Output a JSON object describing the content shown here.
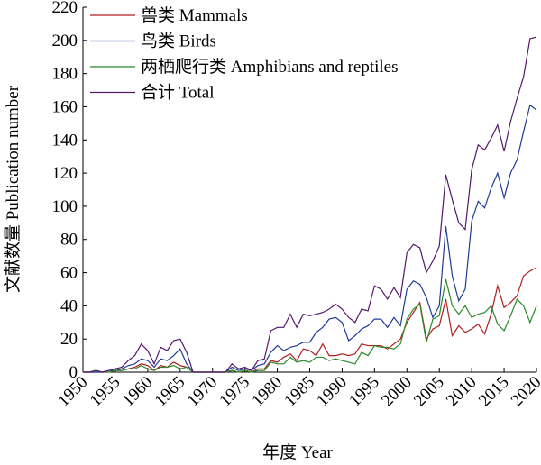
{
  "chart_data": {
    "type": "line",
    "x_label": "年度 Year",
    "y_label": "文献数量 Publication number",
    "x": [
      1950,
      1951,
      1952,
      1953,
      1954,
      1955,
      1956,
      1957,
      1958,
      1959,
      1960,
      1961,
      1962,
      1963,
      1964,
      1965,
      1966,
      1967,
      1968,
      1969,
      1970,
      1971,
      1972,
      1973,
      1974,
      1975,
      1976,
      1977,
      1978,
      1979,
      1980,
      1981,
      1982,
      1983,
      1984,
      1985,
      1986,
      1987,
      1988,
      1989,
      1990,
      1991,
      1992,
      1993,
      1994,
      1995,
      1996,
      1997,
      1998,
      1999,
      2000,
      2001,
      2002,
      2003,
      2004,
      2005,
      2006,
      2007,
      2008,
      2009,
      2010,
      2011,
      2012,
      2013,
      2014,
      2015,
      2016,
      2017,
      2018,
      2019,
      2020
    ],
    "series": [
      {
        "name": "兽类 Mammals",
        "color": "#b01e1e",
        "values": [
          0,
          0,
          0,
          0,
          0,
          1,
          1,
          2,
          3,
          5,
          4,
          1,
          4,
          3,
          6,
          4,
          3,
          0,
          0,
          0,
          0,
          0,
          0,
          1,
          0,
          1,
          0,
          2,
          2,
          7,
          6,
          9,
          11,
          7,
          14,
          13,
          10,
          17,
          10,
          10,
          11,
          10,
          11,
          17,
          16,
          16,
          16,
          14,
          17,
          20,
          30,
          36,
          42,
          20,
          26,
          28,
          44,
          22,
          28,
          24,
          26,
          29,
          23,
          35,
          52,
          39,
          42,
          46,
          58,
          61,
          63
        ]
      },
      {
        "name": "鸟类 Birds",
        "color": "#1f3c96",
        "values": [
          0,
          0,
          0,
          0,
          1,
          1,
          2,
          4,
          5,
          8,
          7,
          3,
          8,
          7,
          10,
          14,
          5,
          0,
          0,
          0,
          0,
          0,
          0,
          3,
          1,
          2,
          1,
          4,
          5,
          12,
          16,
          13,
          15,
          16,
          18,
          18,
          24,
          27,
          32,
          33,
          30,
          19,
          22,
          26,
          28,
          32,
          32,
          27,
          33,
          28,
          50,
          55,
          53,
          45,
          33,
          40,
          88,
          58,
          43,
          50,
          91,
          103,
          99,
          111,
          120,
          105,
          120,
          128,
          145,
          161,
          158
        ]
      },
      {
        "name": "两栖爬行类 Amphibians and reptiles",
        "color": "#2a8a2a",
        "values": [
          0,
          0,
          1,
          0,
          0,
          1,
          1,
          2,
          2,
          4,
          2,
          1,
          3,
          3,
          4,
          2,
          3,
          0,
          0,
          0,
          0,
          0,
          0,
          1,
          0,
          1,
          0,
          1,
          1,
          6,
          5,
          5,
          9,
          6,
          7,
          6,
          9,
          9,
          7,
          8,
          7,
          6,
          5,
          12,
          10,
          16,
          15,
          15,
          14,
          17,
          32,
          38,
          41,
          18,
          32,
          34,
          56,
          40,
          35,
          40,
          33,
          35,
          36,
          40,
          29,
          25,
          34,
          44,
          40,
          30,
          40
        ]
      },
      {
        "name": "合计 Total",
        "color": "#55186b",
        "values": [
          0,
          0,
          1,
          0,
          1,
          2,
          3,
          7,
          10,
          17,
          13,
          5,
          15,
          13,
          19,
          20,
          12,
          0,
          0,
          0,
          0,
          0,
          0,
          5,
          2,
          3,
          1,
          7,
          8,
          25,
          27,
          27,
          35,
          27,
          35,
          34,
          35,
          36,
          38,
          41,
          38,
          33,
          30,
          38,
          37,
          52,
          50,
          44,
          51,
          45,
          72,
          77,
          75,
          60,
          67,
          76,
          119,
          104,
          90,
          86,
          122,
          137,
          134,
          141,
          149,
          133,
          151,
          165,
          178,
          201,
          202
        ]
      }
    ],
    "xlim": [
      1950,
      2020
    ],
    "xticks": [
      1950,
      1955,
      1960,
      1965,
      1970,
      1975,
      1980,
      1985,
      1990,
      1995,
      2000,
      2005,
      2010,
      2015,
      2020
    ],
    "ylim": [
      0,
      220
    ],
    "yticks": [
      0,
      20,
      40,
      60,
      80,
      100,
      120,
      140,
      160,
      180,
      200,
      220
    ]
  }
}
